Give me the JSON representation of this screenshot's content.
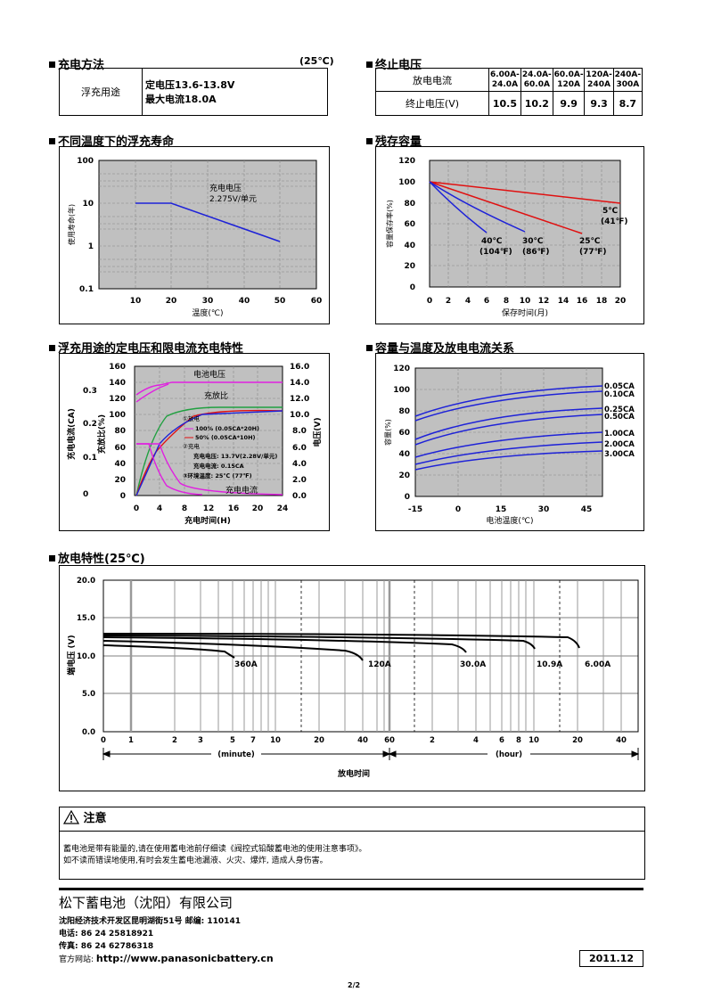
{
  "charge_method": {
    "title": "充电方法",
    "temp": "(25℃)",
    "usage": "浮充用途",
    "voltage": "定电压13.6-13.8V",
    "current": "最大电流18.0A"
  },
  "end_voltage": {
    "title": "终止电压",
    "row1_label": "放电电流",
    "row2_label": "终止电压(V)",
    "currents": [
      "6.00A-24.0A",
      "24.0A-60.0A",
      "60.0A-120A",
      "120A-240A",
      "240A-300A"
    ],
    "voltages": [
      "10.5",
      "10.2",
      "9.9",
      "9.3",
      "8.7"
    ]
  },
  "float_life": {
    "title": "不同温度下的浮充寿命",
    "ylabel": "使用寿命(年)",
    "xlabel": "温度(℃)",
    "annotation1": "充电电压",
    "annotation2": "2.275V/单元",
    "y_ticks": [
      "100",
      "10",
      "1",
      "0.1"
    ],
    "x_ticks": [
      "10",
      "20",
      "30",
      "40",
      "50",
      "60"
    ]
  },
  "retention": {
    "title": "残存容量",
    "ylabel": "容量保存率(%)",
    "xlabel": "保存时间(月)",
    "y_ticks": [
      "120",
      "100",
      "80",
      "60",
      "40",
      "20",
      "0"
    ],
    "x_ticks": [
      "0",
      "2",
      "4",
      "6",
      "8",
      "10",
      "12",
      "14",
      "16",
      "18",
      "20"
    ],
    "labels": [
      {
        "c": "5℃",
        "f": "(41℉)"
      },
      {
        "c": "25℃",
        "f": "(77℉)"
      },
      {
        "c": "30℃",
        "f": "(86℉)"
      },
      {
        "c": "40℃",
        "f": "(104℉)"
      }
    ]
  },
  "charge_char": {
    "title": "浮充用途的定电压和限电流充电特性",
    "label_voltage": "电池电压",
    "label_ratio": "充放比",
    "label_current": "充电电流",
    "xlabel": "充电时间(H)",
    "left_ylabel": "充电电流(CA)",
    "ratio_ylabel": "充放比(%)",
    "right_ylabel": "电压(V)",
    "legend": [
      "①放电",
      "100% (0.05CA*20H)",
      "50% (0.05CA*10H)",
      "②充电",
      "充电电压: 13.7V(2.28V/单元)",
      "充电电流: 0.15CA",
      "③环境温度: 25℃ (77℉)"
    ],
    "ratio_ticks": [
      "160",
      "140",
      "120",
      "100",
      "80",
      "60",
      "40",
      "20",
      "0"
    ],
    "ca_ticks": [
      "0.3",
      "0.2",
      "0.1",
      "0"
    ],
    "v_ticks": [
      "16.0",
      "14.0",
      "12.0",
      "10.0",
      "8.0",
      "6.0",
      "4.0",
      "2.0",
      "0.0"
    ],
    "x_ticks": [
      "0",
      "4",
      "8",
      "12",
      "16",
      "20",
      "24"
    ]
  },
  "cap_temp": {
    "title": "容量与温度及放电电流关系",
    "ylabel": "容量(%)",
    "xlabel": "电池温度(℃)",
    "y_ticks": [
      "120",
      "100",
      "80",
      "60",
      "40",
      "20",
      "0"
    ],
    "x_ticks": [
      "-15",
      "0",
      "15",
      "30",
      "45"
    ],
    "series_labels": [
      "0.05CA",
      "0.10CA",
      "0.25CA",
      "0.50CA",
      "1.00CA",
      "2.00CA",
      "3.00CA"
    ]
  },
  "discharge": {
    "title": "放电特性(25℃)",
    "ylabel": "端电压 (V)",
    "xlabel": "放电时间",
    "minute_label": "(minute)",
    "hour_label": "(hour)",
    "y_ticks": [
      "20.0",
      "15.0",
      "10.0",
      "5.0",
      "0.0"
    ],
    "minute_ticks": [
      "0",
      "1",
      "2",
      "3",
      "5",
      "7",
      "10",
      "20",
      "40",
      "60"
    ],
    "hour_ticks": [
      "2",
      "4",
      "6",
      "8",
      "10",
      "20",
      "40"
    ],
    "curve_labels": [
      "360A",
      "120A",
      "30.0A",
      "10.9A",
      "6.00A"
    ]
  },
  "notice": {
    "title": "注意",
    "line1": "蓄电池是带有能量的,请在使用蓄电池前仔细读《阀控式铅酸蓄电池的使用注意事项》。",
    "line2": "如不读而错误地使用,有时会发生蓄电池漏液、火灾、爆炸, 造成人身伤害。"
  },
  "company": {
    "name": "松下蓄电池（沈阳）有限公司",
    "address": "沈阳经济技术开发区昆明湖街51号 邮编: 110141",
    "phone": "电话: 86 24 25818921",
    "fax": "传真: 86 24 62786318",
    "website_label": "官方网站: ",
    "website": "http://www.panasonicbattery.cn"
  },
  "date": "2011.12",
  "page": "2/2"
}
